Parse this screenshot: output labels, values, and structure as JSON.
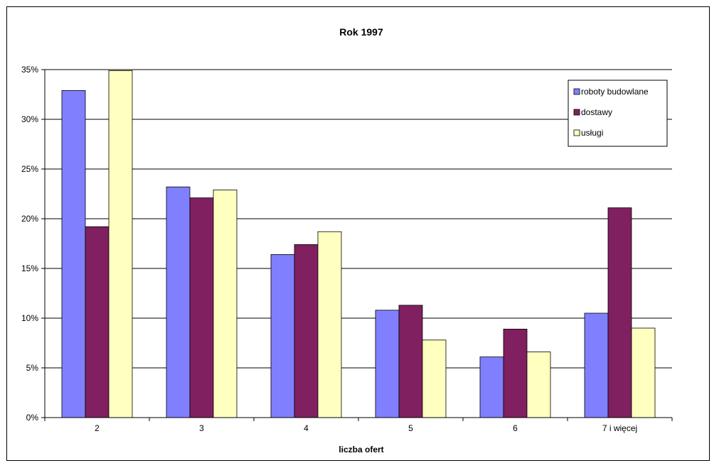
{
  "chart_data": {
    "type": "bar",
    "title": "Rok 1997",
    "xlabel": "liczba ofert",
    "ylabel": "",
    "ylim": [
      0,
      35
    ],
    "yticks": [
      "0%",
      "5%",
      "10%",
      "15%",
      "20%",
      "25%",
      "30%",
      "35%"
    ],
    "ytick_values": [
      0,
      5,
      10,
      15,
      20,
      25,
      30,
      35
    ],
    "grid": true,
    "legend_position": "top-right",
    "categories": [
      "2",
      "3",
      "4",
      "5",
      "6",
      "7 i więcej"
    ],
    "series": [
      {
        "name": "roboty budowlane",
        "color": "#8080FF",
        "values": [
          32.9,
          23.2,
          16.4,
          10.8,
          6.1,
          10.5
        ]
      },
      {
        "name": "dostawy",
        "color": "#802060",
        "values": [
          19.2,
          22.1,
          17.4,
          11.3,
          8.9,
          21.1
        ]
      },
      {
        "name": "usługi",
        "color": "#FFFFC0",
        "values": [
          34.9,
          22.9,
          18.7,
          7.8,
          6.6,
          9.0
        ]
      }
    ]
  }
}
